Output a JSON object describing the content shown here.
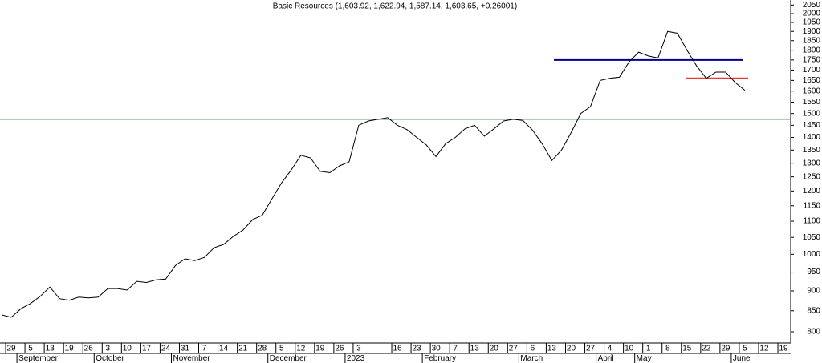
{
  "chart_data": {
    "type": "line",
    "title": "Basic Resources (1,603.92, 1,622.94, 1,587.14, 1,603.65, +0.26001)",
    "categories": [
      null,
      "29",
      null,
      "5",
      null,
      "13",
      null,
      "19",
      null,
      "26",
      null,
      "3",
      null,
      "10",
      null,
      "17",
      null,
      "24",
      null,
      "31",
      null,
      "7",
      null,
      "14",
      null,
      "21",
      null,
      "28",
      null,
      "5",
      null,
      "12",
      null,
      "19",
      null,
      "26",
      null,
      "3",
      null,
      null,
      null,
      "16",
      null,
      "23",
      null,
      "30",
      null,
      "7",
      null,
      "13",
      null,
      "20",
      null,
      "27",
      null,
      "6",
      null,
      "13",
      null,
      "20",
      null,
      "27",
      null,
      "4",
      null,
      "10",
      null,
      "1",
      null,
      "8",
      null,
      "15",
      null,
      "22",
      null,
      "29",
      null,
      "5",
      null,
      "12",
      null,
      "19"
    ],
    "month_labels": [
      null,
      null,
      null,
      "September",
      null,
      null,
      null,
      null,
      null,
      null,
      null,
      "October",
      null,
      null,
      null,
      null,
      null,
      null,
      null,
      "November",
      null,
      null,
      null,
      null,
      null,
      null,
      null,
      null,
      null,
      "December",
      null,
      null,
      null,
      null,
      null,
      null,
      null,
      "2023",
      null,
      null,
      null,
      null,
      null,
      null,
      null,
      "February",
      null,
      null,
      null,
      null,
      null,
      null,
      null,
      null,
      null,
      "March",
      null,
      null,
      null,
      null,
      null,
      null,
      null,
      "April",
      null,
      null,
      null,
      "May",
      null,
      null,
      null,
      null,
      null,
      null,
      null,
      null,
      null,
      "June",
      null,
      null,
      null,
      null
    ],
    "series": [
      {
        "name": "Basic Resources",
        "color": "#000000",
        "values": [
          840,
          834,
          855,
          868,
          886,
          910,
          880,
          876,
          884,
          882,
          884,
          906,
          906,
          902,
          925,
          922,
          929,
          931,
          968,
          987,
          982,
          991,
          1019,
          1029,
          1053,
          1072,
          1105,
          1119,
          1173,
          1228,
          1275,
          1330,
          1320,
          1270,
          1265,
          1290,
          1305,
          1450,
          1468,
          1475,
          1482,
          1450,
          1432,
          1400,
          1370,
          1325,
          1375,
          1400,
          1435,
          1450,
          1405,
          1435,
          1468,
          1475,
          1470,
          1430,
          1375,
          1310,
          1350,
          1420,
          1500,
          1530,
          1650,
          1660,
          1665,
          1740,
          1790,
          1770,
          1760,
          1900,
          1890,
          1800,
          1720,
          1660,
          1690,
          1690,
          1640,
          1604,
          null,
          null,
          null,
          null
        ]
      }
    ],
    "reference_lines": [
      {
        "value": 1475,
        "color": "#2e7d32"
      },
      {
        "value": 1750,
        "color": "#00008b"
      },
      {
        "value": 1660,
        "color": "#e53935"
      }
    ],
    "log_scale": true,
    "ylim": [
      780,
      2080
    ],
    "yticks": [
      800,
      850,
      900,
      950,
      1000,
      1050,
      1100,
      1150,
      1200,
      1250,
      1300,
      1350,
      1400,
      1450,
      1500,
      1550,
      1600,
      1650,
      1700,
      1750,
      1800,
      1850,
      1900,
      1950,
      2000,
      2050
    ]
  }
}
